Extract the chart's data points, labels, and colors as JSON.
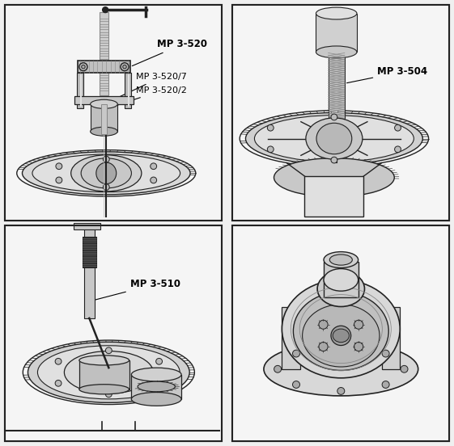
{
  "figure_width": 5.61,
  "figure_height": 5.52,
  "dpi": 100,
  "bg": "#f0f0f0",
  "panel_bg": "#ffffff",
  "border_color": "#222222",
  "dark": "#222222",
  "gray1": "#888888",
  "gray2": "#bbbbbb",
  "gray3": "#dddddd",
  "panels": {
    "tl": [
      0.01,
      0.505,
      0.488,
      0.99
    ],
    "tr": [
      0.512,
      0.505,
      0.99,
      0.99
    ],
    "bl": [
      0.01,
      0.01,
      0.488,
      0.495
    ],
    "br": [
      0.512,
      0.01,
      0.99,
      0.495
    ]
  },
  "label_fontsize": 8.5,
  "label_bold": true
}
